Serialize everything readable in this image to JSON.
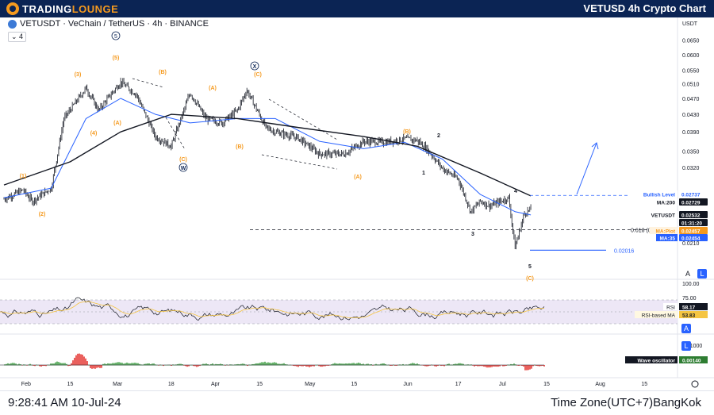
{
  "header": {
    "logo_white": "TRADING",
    "logo_orange": "LOUNGE",
    "title": "VETUSD 4h Crypto Chart"
  },
  "symbol": {
    "text": "VETUSDT · VeChain / TetherUS · 4h · BINANCE",
    "indicator_count": "4"
  },
  "footer": {
    "time": "9:28:41 AM 10-Jul-24",
    "timezone": "Time Zone(UTC+7)BangKok"
  },
  "colors": {
    "up": "#26a69a",
    "down": "#ef5350",
    "candle": "#131722",
    "ma35": "#2962ff",
    "ma200": "#131722",
    "wave": "#f59a1f",
    "rsi": "#7e57c2",
    "rsi_band": "#ede7f6",
    "navy": "#0b2454"
  },
  "chart_data": [
    {
      "type": "line",
      "name": "price",
      "ylabel": "USDT",
      "scale": "log",
      "ylim": [
        0.0176,
        0.07
      ],
      "y_ticks": [
        0.065,
        0.06,
        0.055,
        0.051,
        0.047,
        0.043,
        0.039,
        0.035,
        0.032,
        0.021
      ],
      "x_ticks": [
        "Feb",
        "15",
        "Mar",
        "18",
        "Apr",
        "15",
        "May",
        "15",
        "Jun",
        "17",
        "Jul",
        "15",
        "Aug",
        "15"
      ],
      "x_range": [
        "2024-01-25",
        "2024-08-25"
      ],
      "series": [
        {
          "name": "",
          "legend": false,
          "x": [
            "2024-01-25",
            "2024-01-31",
            "2024-02-03",
            "2024-02-09",
            "2024-02-13",
            "2024-02-20",
            "2024-02-24",
            "2024-03-02",
            "2024-03-07",
            "2024-03-13",
            "2024-03-18",
            "2024-03-24",
            "2024-03-29",
            "2024-04-03",
            "2024-04-08",
            "2024-04-11",
            "2024-04-17",
            "2024-04-20",
            "2024-04-27",
            "2024-05-04",
            "2024-05-12",
            "2024-05-18",
            "2024-05-25",
            "2024-05-31",
            "2024-06-04",
            "2024-06-07",
            "2024-06-12",
            "2024-06-17",
            "2024-06-21",
            "2024-06-24",
            "2024-06-27",
            "2024-07-03",
            "2024-07-05",
            "2024-07-08",
            "2024-07-10"
          ],
          "values": [
            0.0268,
            0.0282,
            0.0265,
            0.0285,
            0.042,
            0.0498,
            0.044,
            0.0515,
            0.048,
            0.038,
            0.036,
            0.0485,
            0.042,
            0.041,
            0.044,
            0.0492,
            0.04,
            0.039,
            0.0378,
            0.0345,
            0.0345,
            0.037,
            0.0368,
            0.0375,
            0.0372,
            0.0355,
            0.0318,
            0.03,
            0.025,
            0.0265,
            0.0258,
            0.027,
            0.0205,
            0.0248,
            0.0253
          ]
        },
        {
          "name": "MA:35",
          "x": [
            "2024-01-25",
            "2024-02-09",
            "2024-02-20",
            "2024-03-02",
            "2024-03-13",
            "2024-03-24",
            "2024-04-08",
            "2024-04-20",
            "2024-05-04",
            "2024-05-18",
            "2024-05-31",
            "2024-06-12",
            "2024-06-24",
            "2024-07-05",
            "2024-07-10"
          ],
          "values": [
            0.027,
            0.0285,
            0.042,
            0.047,
            0.043,
            0.041,
            0.042,
            0.042,
            0.037,
            0.0355,
            0.0368,
            0.0335,
            0.0275,
            0.025,
            0.02454
          ]
        },
        {
          "name": "MA:200",
          "x": [
            "2024-01-25",
            "2024-02-15",
            "2024-03-02",
            "2024-03-18",
            "2024-04-08",
            "2024-04-27",
            "2024-05-18",
            "2024-06-04",
            "2024-06-24",
            "2024-07-10"
          ],
          "values": [
            0.029,
            0.033,
            0.039,
            0.043,
            0.042,
            0.04,
            0.038,
            0.036,
            0.031,
            0.02729
          ]
        }
      ],
      "price_labels": [
        {
          "label": "Bullish Level",
          "value": "0.02737"
        },
        {
          "label": "MA:200",
          "value": "0.02729"
        },
        {
          "label": "VETUSDT",
          "value": "0.02532"
        },
        {
          "label": "",
          "value": "01:31:20"
        },
        {
          "label": "MA:Plot",
          "value": "0.02457"
        },
        {
          "label": "MA:35",
          "value": "0.02454"
        }
      ],
      "fib_label": "0.618 (0",
      "low_label": "0.02016",
      "annotations": [
        "(1)",
        "(2)",
        "(3)",
        "(4)",
        "(5)",
        "(A)",
        "(B)",
        "(C)",
        "W",
        "X",
        "(A)",
        "(B)",
        "(C)",
        "(A)",
        "(B)",
        "1",
        "2",
        "3",
        "4",
        "5",
        "(C)"
      ]
    },
    {
      "type": "line",
      "name": "rsi",
      "ylim": [
        0,
        100
      ],
      "y_ticks": [
        100.0,
        75.0
      ],
      "series": [
        {
          "name": "RSI",
          "value": "58.17"
        },
        {
          "name": "RSI-based MA",
          "value": "53.83"
        }
      ]
    },
    {
      "type": "bar",
      "name": "oscillator",
      "y_ticks": [
        0.01
      ],
      "series": [
        {
          "name": "Wave oscillator",
          "value": "0.00140"
        }
      ]
    }
  ]
}
